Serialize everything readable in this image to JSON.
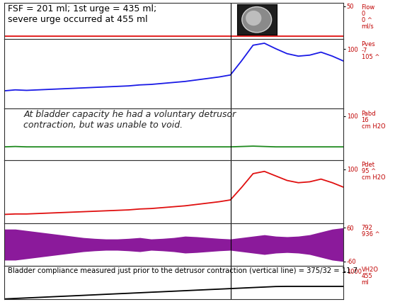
{
  "x": [
    0,
    1,
    2,
    3,
    4,
    5,
    6,
    7,
    8,
    9,
    10,
    11,
    12,
    13,
    14,
    15,
    16,
    17,
    18,
    19,
    20,
    21,
    22,
    23,
    24,
    25,
    26,
    27,
    28,
    29,
    30
  ],
  "xlim": [
    0,
    30
  ],
  "tick_labels": "y",
  "vertical_line": 20,
  "annotations": [
    "FSF = 201 ml; 1st urge = 435 ml;\nsevere urge occurred at 455 ml",
    "At bladder capacity he had a voluntary detrusor\ncontraction, but was unable to void.",
    "Bladder compliance measured just prior to the detrusor contraction (vertical line) = 375/32 = 11.7"
  ],
  "chart_data": [
    {
      "type": "line",
      "ylabel": "Flow",
      "readouts": [
        "0",
        "0 ^"
      ],
      "unit": "ml/s",
      "color": "#e01010",
      "values": [
        0,
        0,
        0,
        0,
        0,
        0,
        0,
        0,
        0,
        0,
        0,
        0,
        0,
        0,
        0,
        0,
        0,
        0,
        0,
        0,
        0,
        0,
        0,
        0,
        0,
        0,
        0,
        0,
        0,
        0,
        0
      ],
      "ylim": [
        -5,
        55
      ],
      "yticks": [
        50
      ]
    },
    {
      "type": "line",
      "ylabel": "Pves",
      "readouts": [
        "-7",
        "105 ^"
      ],
      "color": "#1a1ae6",
      "values": [
        16,
        18,
        17,
        18,
        19,
        20,
        21,
        22,
        23,
        24,
        25,
        26,
        28,
        29,
        31,
        33,
        35,
        38,
        41,
        44,
        48,
        77,
        108,
        112,
        101,
        91,
        86,
        88,
        94,
        86,
        76
      ],
      "ylim": [
        -20,
        120
      ],
      "yticks": [
        100
      ]
    },
    {
      "type": "line",
      "ylabel": "Pabd",
      "readouts": [
        "16"
      ],
      "unit": "cm H2O",
      "color": "#1f8a1f",
      "values": [
        16,
        17,
        16,
        16,
        16,
        16,
        16,
        16,
        16,
        16,
        16,
        16,
        16,
        16,
        16,
        16,
        16,
        16,
        16,
        16,
        16,
        17,
        18,
        17,
        16,
        16,
        16,
        16,
        16,
        16,
        16
      ],
      "ylim": [
        -20,
        120
      ],
      "yticks": [
        100
      ]
    },
    {
      "type": "line",
      "ylabel": "Pdet",
      "readouts": [
        "95 ^"
      ],
      "unit": "cm H2O",
      "color": "#e01010",
      "values": [
        0,
        1,
        1,
        2,
        3,
        4,
        5,
        6,
        7,
        8,
        9,
        10,
        12,
        13,
        15,
        17,
        19,
        22,
        25,
        28,
        32,
        60,
        90,
        95,
        85,
        75,
        70,
        72,
        78,
        70,
        60
      ],
      "ylim": [
        -20,
        120
      ],
      "yticks": [
        100
      ]
    },
    {
      "type": "band",
      "readouts": [
        "792",
        "936 ^"
      ],
      "color": "#8b1a9b",
      "values": [
        55,
        55,
        50,
        45,
        40,
        35,
        30,
        25,
        22,
        20,
        20,
        22,
        25,
        20,
        22,
        25,
        30,
        28,
        25,
        22,
        20,
        25,
        30,
        35,
        30,
        28,
        30,
        35,
        45,
        55,
        60
      ],
      "ylim": [
        -75,
        75
      ],
      "yticks": [
        -60,
        60
      ]
    },
    {
      "type": "line",
      "ylabel": "VH2O",
      "readouts": [
        "455"
      ],
      "unit": "ml",
      "color": "#000000",
      "values": [
        0,
        19,
        38,
        56,
        75,
        94,
        112,
        131,
        150,
        169,
        188,
        206,
        225,
        244,
        262,
        281,
        300,
        319,
        338,
        356,
        375,
        394,
        413,
        431,
        450,
        455,
        455,
        455,
        455,
        455,
        455
      ],
      "ylim": [
        0,
        1200
      ],
      "yticks": [
        1000
      ]
    }
  ]
}
